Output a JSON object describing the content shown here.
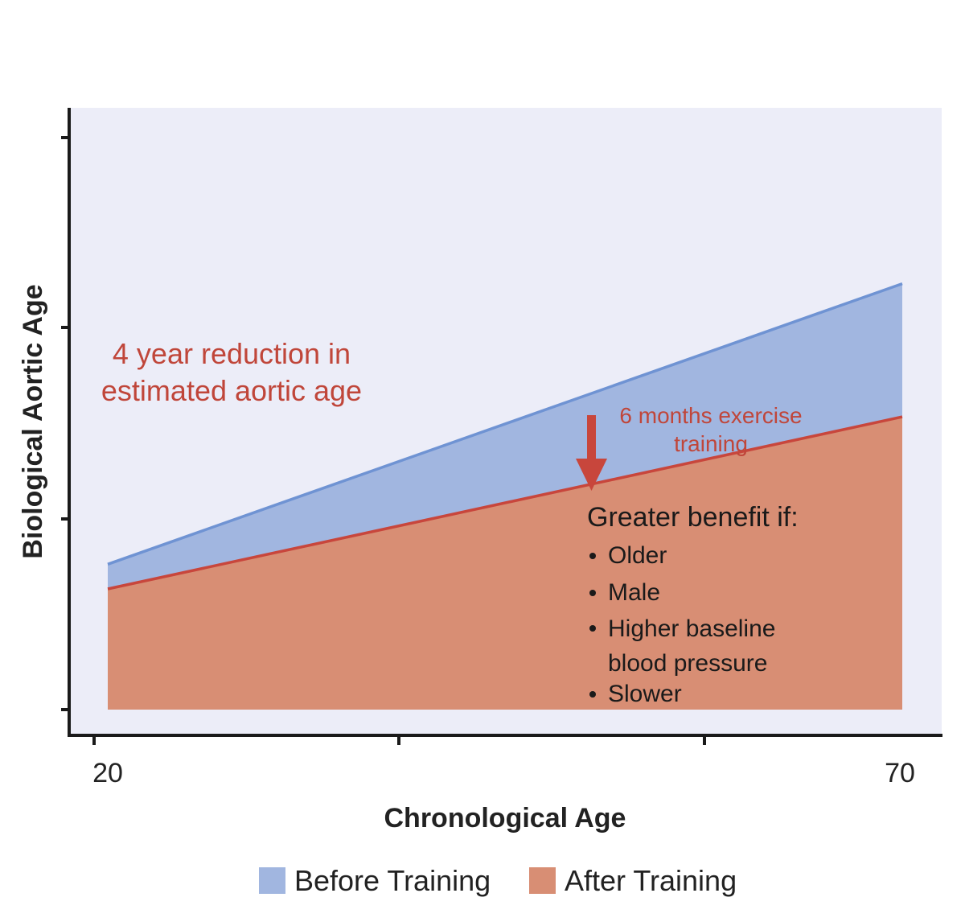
{
  "chart_data": {
    "type": "area",
    "xlabel": "Chronological Age",
    "ylabel": "Biological Aortic Age",
    "x_tick_labels": [
      "20",
      "70"
    ],
    "x": [
      20,
      70
    ],
    "series": [
      {
        "name": "Before Training",
        "values": [
          26,
          55.5
        ],
        "color": "#a1b6e0",
        "line_color": "#6f93d3"
      },
      {
        "name": "After Training",
        "values": [
          23.4,
          41.5
        ],
        "color": "#d88e74",
        "line_color": "#c8463c"
      }
    ],
    "ylim": [
      8,
      74
    ],
    "legend_position": "bottom",
    "background_color": "#ecedf8",
    "annotations": {
      "headline": [
        "4 year reduction in",
        "estimated aortic age"
      ],
      "arrow_label": [
        "6 months exercise",
        "training"
      ],
      "benefit_title": "Greater benefit if:",
      "benefit_items": [
        "Older",
        "Male",
        "Higher baseline",
        "blood pressure",
        "Slower"
      ]
    }
  }
}
